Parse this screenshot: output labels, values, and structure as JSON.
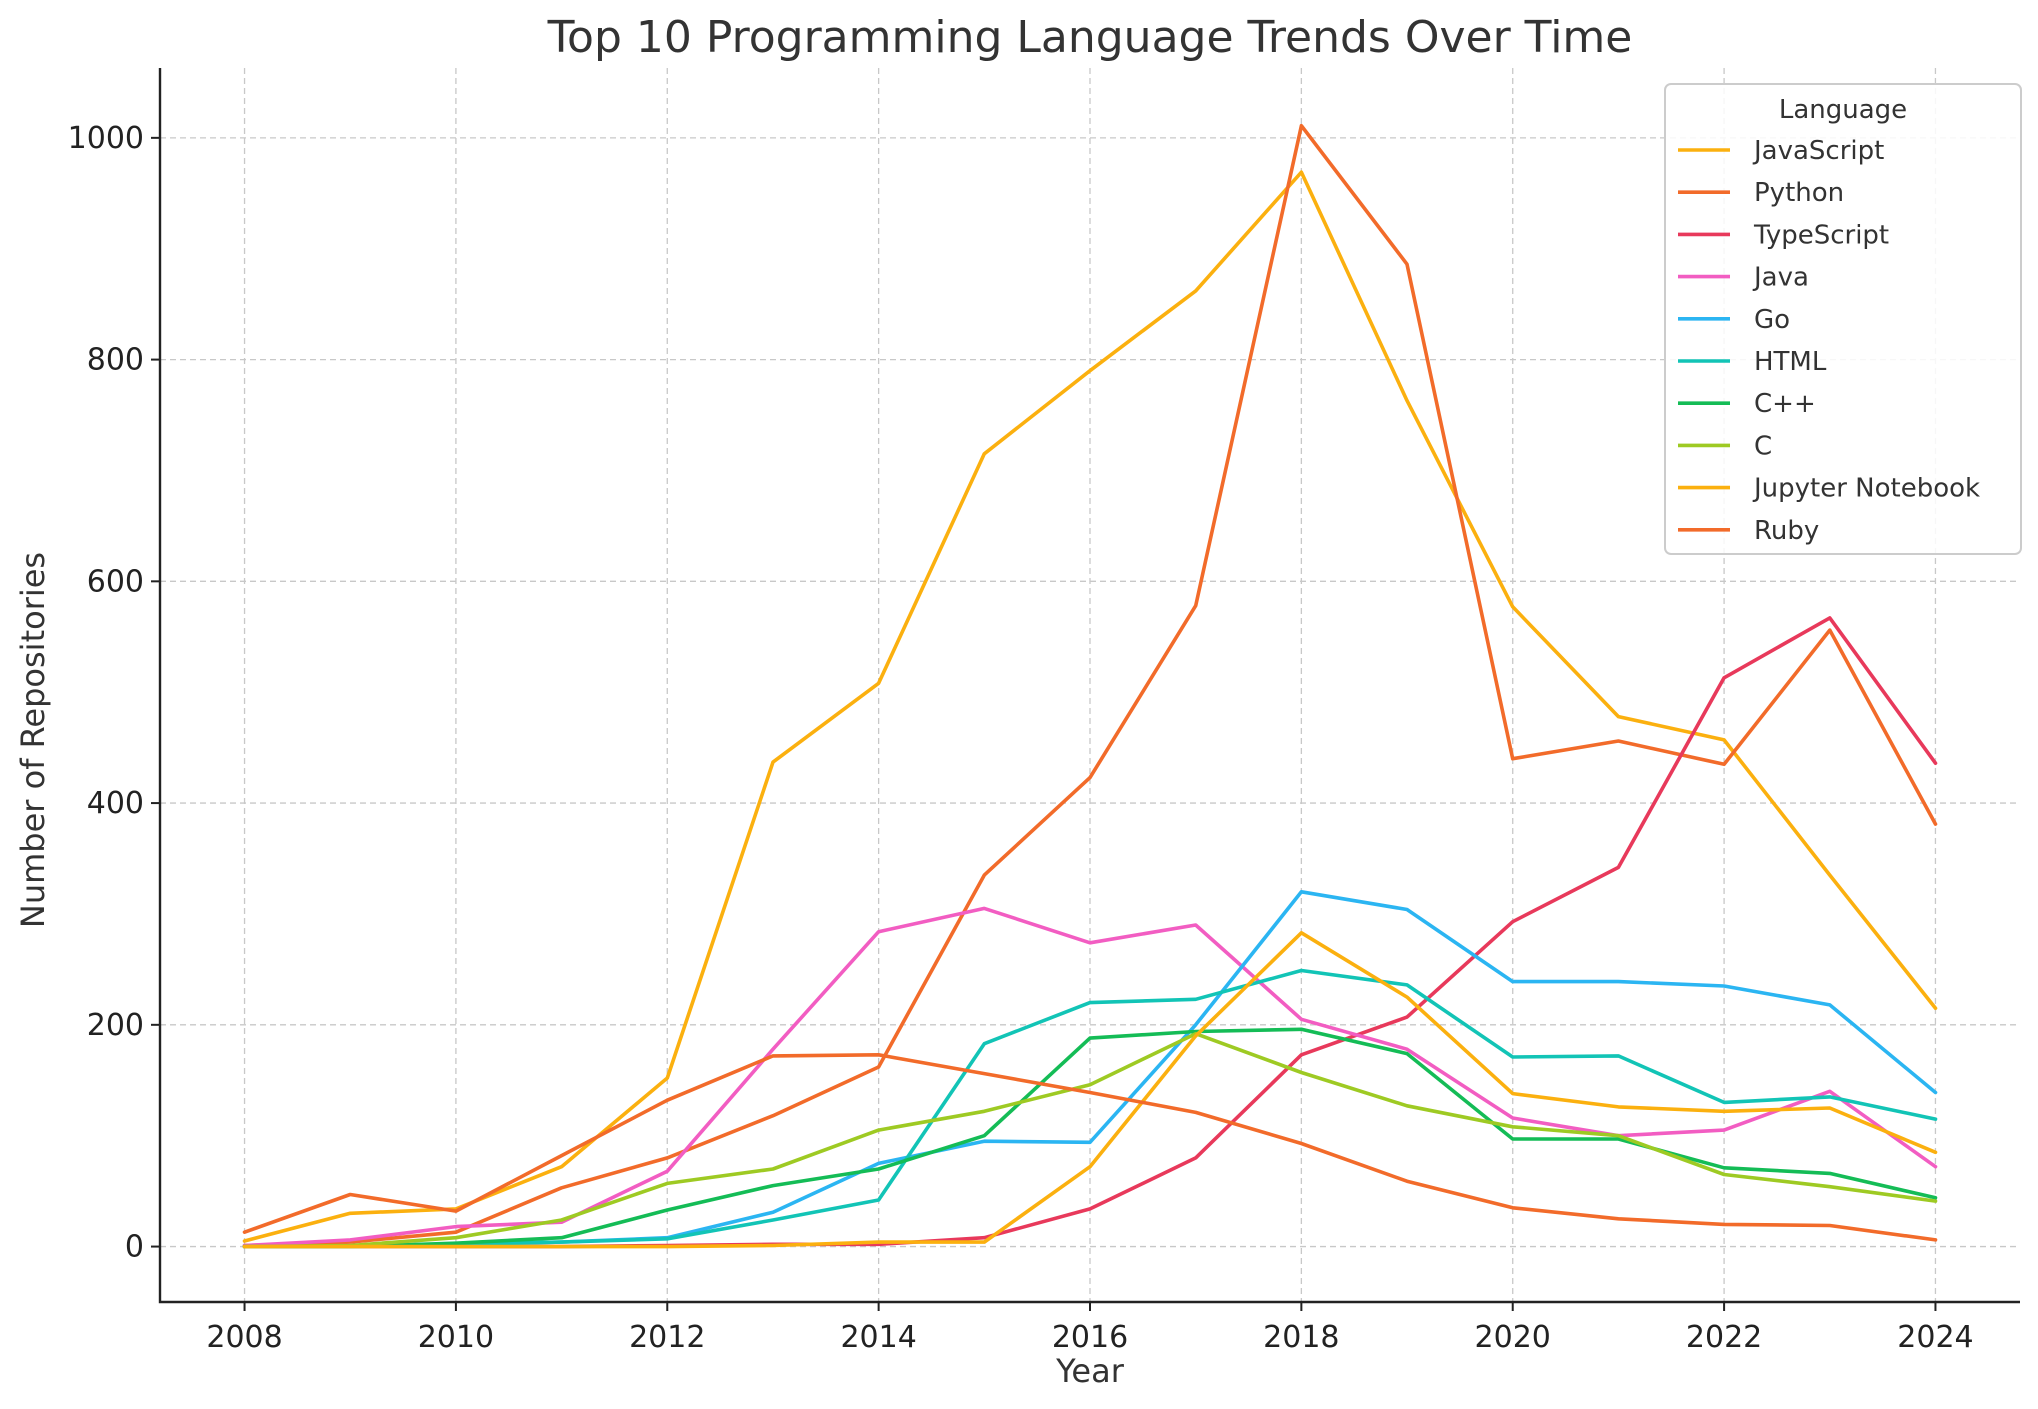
{
  "chart_data": {
    "type": "line",
    "title": "Top 10 Programming Language Trends Over Time",
    "xlabel": "Year",
    "ylabel": "Number of Repositories",
    "xlim": [
      2007.2,
      2024.8
    ],
    "ylim": [
      -50,
      1063
    ],
    "xticks": [
      2008,
      2010,
      2012,
      2014,
      2016,
      2018,
      2020,
      2022,
      2024
    ],
    "yticks": [
      0,
      200,
      400,
      600,
      800,
      1000
    ],
    "grid": true,
    "legend": {
      "title": "Language",
      "placement": "top-right"
    },
    "x": [
      2008,
      2009,
      2010,
      2011,
      2012,
      2013,
      2014,
      2015,
      2016,
      2017,
      2018,
      2019,
      2020,
      2021,
      2022,
      2023,
      2024
    ],
    "series": [
      {
        "name": "JavaScript",
        "color": "#FBB00F",
        "values": [
          5,
          30,
          34,
          72,
          152,
          437,
          508,
          715,
          790,
          862,
          969,
          763,
          577,
          478,
          457,
          335,
          215
        ]
      },
      {
        "name": "Python",
        "color": "#F26B2A",
        "values": [
          1,
          4,
          13,
          53,
          80,
          118,
          162,
          335,
          423,
          578,
          1011,
          886,
          440,
          456,
          435,
          556,
          381
        ]
      },
      {
        "name": "TypeScript",
        "color": "#E8395B",
        "values": [
          0,
          0,
          0,
          0,
          1,
          2,
          2,
          8,
          34,
          80,
          173,
          207,
          293,
          342,
          513,
          567,
          436
        ]
      },
      {
        "name": "Java",
        "color": "#F25DC2",
        "values": [
          1,
          6,
          18,
          22,
          68,
          178,
          284,
          305,
          274,
          290,
          205,
          178,
          116,
          100,
          105,
          140,
          72
        ]
      },
      {
        "name": "Go",
        "color": "#2BB5F2",
        "values": [
          0,
          0,
          2,
          4,
          8,
          31,
          75,
          95,
          94,
          200,
          320,
          304,
          239,
          239,
          235,
          218,
          139
        ]
      },
      {
        "name": "HTML",
        "color": "#12C4B6",
        "values": [
          0,
          0,
          2,
          4,
          7,
          24,
          42,
          183,
          220,
          223,
          249,
          236,
          171,
          172,
          130,
          135,
          115
        ]
      },
      {
        "name": "C++",
        "color": "#14BC56",
        "values": [
          0,
          0,
          3,
          8,
          33,
          55,
          70,
          100,
          188,
          194,
          196,
          174,
          97,
          97,
          71,
          66,
          44
        ]
      },
      {
        "name": "C",
        "color": "#9ECA23",
        "values": [
          0,
          1,
          8,
          24,
          57,
          70,
          105,
          122,
          146,
          192,
          157,
          127,
          108,
          100,
          65,
          54,
          41
        ]
      },
      {
        "name": "Jupyter Notebook",
        "color": "#FBB00F",
        "values": [
          0,
          0,
          0,
          0,
          0,
          1,
          4,
          4,
          72,
          190,
          283,
          225,
          138,
          126,
          122,
          125,
          85
        ]
      },
      {
        "name": "Ruby",
        "color": "#F26B2A",
        "values": [
          13,
          47,
          32,
          82,
          132,
          172,
          173,
          156,
          139,
          121,
          93,
          59,
          35,
          25,
          20,
          19,
          6
        ]
      }
    ]
  }
}
